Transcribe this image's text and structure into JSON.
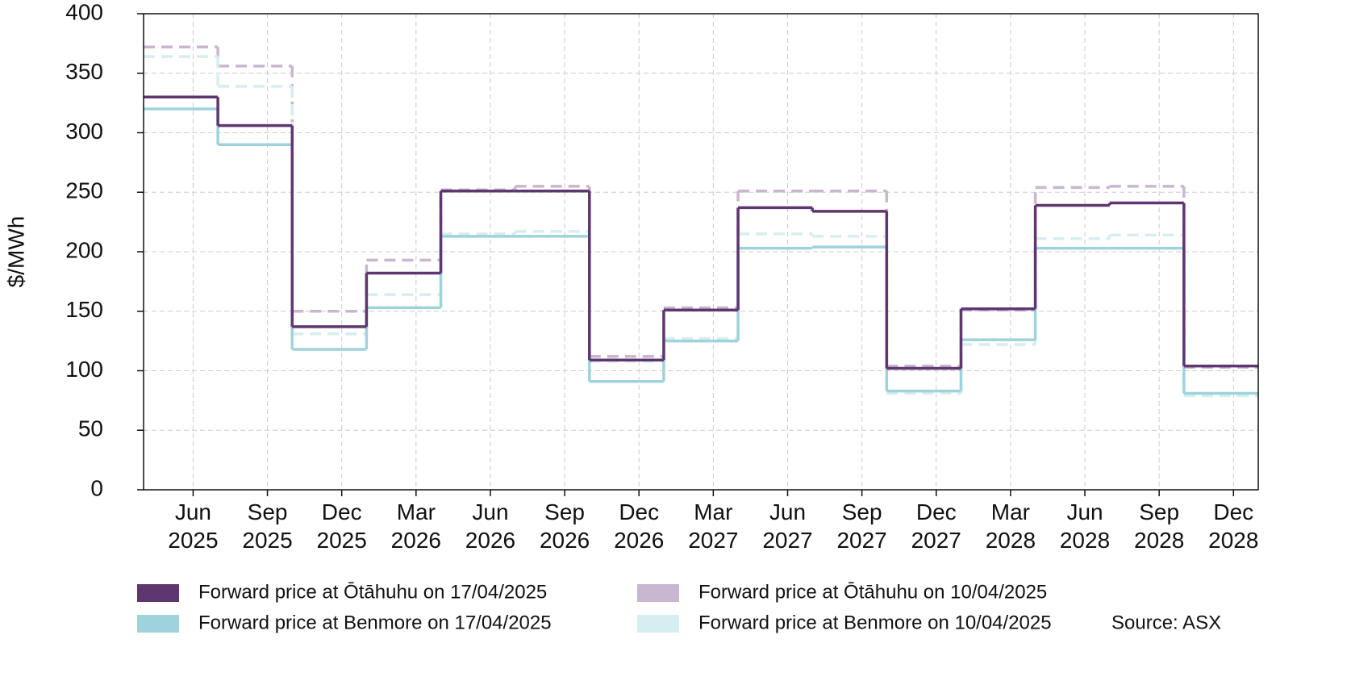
{
  "chart_data": {
    "type": "step",
    "y_label": "$/MWh",
    "source": "Source: ASX",
    "x": [
      "2025-04",
      "2025-07",
      "2025-10",
      "2026-01",
      "2026-04",
      "2026-07",
      "2026-10",
      "2027-01",
      "2027-04",
      "2027-07",
      "2027-10",
      "2028-01",
      "2028-04",
      "2028-07",
      "2028-10"
    ],
    "xlim": [
      "2025-04",
      "2029-01"
    ],
    "xticks": [
      {
        "value": "2025-06",
        "label": "Jun 2025"
      },
      {
        "value": "2025-09",
        "label": "Sep 2025"
      },
      {
        "value": "2025-12",
        "label": "Dec 2025"
      },
      {
        "value": "2026-03",
        "label": "Mar 2026"
      },
      {
        "value": "2026-06",
        "label": "Jun 2026"
      },
      {
        "value": "2026-09",
        "label": "Sep 2026"
      },
      {
        "value": "2026-12",
        "label": "Dec 2026"
      },
      {
        "value": "2027-03",
        "label": "Mar 2027"
      },
      {
        "value": "2027-06",
        "label": "Jun 2027"
      },
      {
        "value": "2027-09",
        "label": "Sep 2027"
      },
      {
        "value": "2027-12",
        "label": "Dec 2027"
      },
      {
        "value": "2028-03",
        "label": "Mar 2028"
      },
      {
        "value": "2028-06",
        "label": "Jun 2028"
      },
      {
        "value": "2028-09",
        "label": "Sep 2028"
      },
      {
        "value": "2028-12",
        "label": "Dec 2028"
      }
    ],
    "ylim": [
      0,
      400
    ],
    "yticks": [
      0,
      50,
      100,
      150,
      200,
      250,
      300,
      350,
      400
    ],
    "grid": true,
    "legend": "bottom",
    "series": [
      {
        "name": "Forward price at Ōtāhuhu on 10/04/2025",
        "color": "#c9b6d0",
        "dashed": true,
        "values": [
          372,
          356,
          150,
          193,
          252,
          255,
          112,
          153,
          251,
          251,
          104,
          151,
          254,
          255,
          103
        ]
      },
      {
        "name": "Forward price at Benmore on 10/04/2025",
        "color": "#d6eef1",
        "dashed": true,
        "values": [
          364,
          339,
          131,
          164,
          215,
          217,
          108,
          127,
          215,
          213,
          81,
          122,
          211,
          214,
          79
        ]
      },
      {
        "name": "Forward price at Benmore on 17/04/2025",
        "color": "#9fd3dc",
        "dashed": false,
        "values": [
          320,
          290,
          118,
          153,
          213,
          213,
          91,
          125,
          203,
          204,
          83,
          126,
          203,
          203,
          81
        ]
      },
      {
        "name": "Forward price at Ōtāhuhu on 17/04/2025",
        "color": "#5e3670",
        "dashed": false,
        "values": [
          330,
          306,
          137,
          182,
          251,
          251,
          109,
          151,
          237,
          234,
          102,
          152,
          239,
          241,
          104
        ]
      }
    ]
  }
}
